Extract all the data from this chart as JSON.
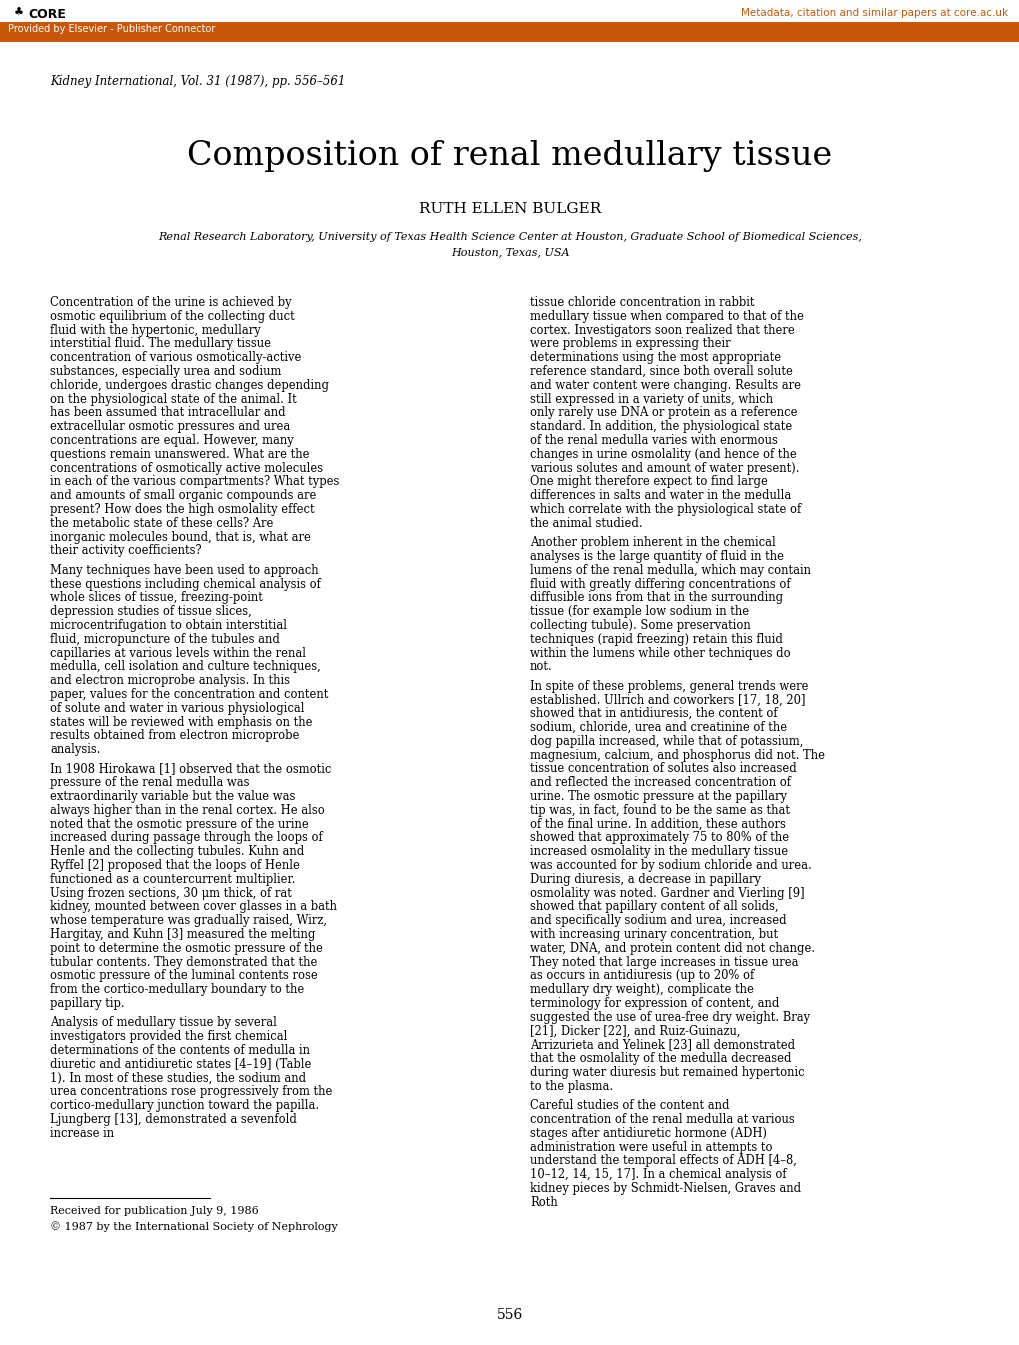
{
  "bg_color": "#ffffff",
  "header_bar_color": "#c8570a",
  "header_bar_text": "Provided by Elsevier - Publisher Connector",
  "header_bar_text_color": "#ffffff",
  "core_text": "CORE",
  "core_link_text": "Metadata, citation and similar papers at core.ac.uk",
  "core_link_color": "#c8570a",
  "journal_ref": "Kidney International, Vol. 31 (1987), pp. 556–561",
  "main_title": "Composition of renal medullary tissue",
  "author": "RUTH ELLEN BULGER",
  "affiliation_line1": "Renal Research Laboratory, University of Texas Health Science Center at Houston, Graduate School of Biomedical Sciences,",
  "affiliation_line2": "Houston, Texas, USA",
  "col1_paragraphs": [
    "   Concentration of the urine is achieved by osmotic equilibrium of the collecting duct fluid with the hypertonic, medullary interstitial fluid. The medullary tissue concentration of various osmotically-active substances, especially urea and sodium chloride, undergoes drastic changes depending on the physiological state of the animal. It has been assumed that intracellular and extracellular osmotic pressures and urea concentrations are equal. However, many questions remain unanswered. What are the concentrations of osmotically active molecules in each of the various compartments? What types and amounts of small organic compounds are present? How does the high osmolality effect the metabolic state of these cells? Are inorganic molecules bound, that is, what are their activity coefficients?",
    "   Many techniques have been used to approach these questions including chemical analysis of whole slices of tissue, freezing-point depression studies of tissue slices, microcentrifugation to obtain interstitial fluid, micropuncture of the tubules and capillaries at various levels within the renal medulla, cell isolation and culture techniques, and electron microprobe analysis. In this paper, values for the concentration and content of solute and water in various physiological states will be reviewed with emphasis on the results obtained from electron microprobe analysis.",
    "   In 1908 Hirokawa [1] observed that the osmotic pressure of the renal medulla was extraordinarily variable but the value was always higher than in the renal cortex. He also noted that the osmotic pressure of the urine increased during passage through the loops of Henle and the collecting tubules. Kuhn and Ryffel [2] proposed that the loops of Henle functioned as a countercurrent multiplier. Using frozen sections, 30 μm thick, of rat kidney, mounted between cover glasses in a bath whose temperature was gradually raised, Wirz, Hargitay, and Kuhn [3] measured the melting point to determine the osmotic pressure of the tubular contents. They demonstrated that the osmotic pressure of the luminal contents rose from the cortico-medullary boundary to the papillary tip.",
    "   Analysis of medullary tissue by several investigators provided the first chemical determinations of the contents of medulla in diuretic and antidiuretic states [4–19] (Table 1). In most of these studies, the sodium and urea concentrations rose progressively from the cortico-medullary junction toward the papilla. Ljungberg [13], demonstrated a sevenfold increase in"
  ],
  "col2_paragraphs": [
    "tissue chloride concentration in rabbit medullary tissue when compared to that of the cortex. Investigators soon realized that there were problems in expressing their determinations using the most appropriate reference standard, since both overall solute and water content were changing. Results are still expressed in a variety of units, which only rarely use DNA or protein as a reference standard. In addition, the physiological state of the renal medulla varies with enormous changes in urine osmolality (and hence of the various solutes and amount of water present). One might therefore expect to find large differences in salts and water in the medulla which correlate with the physiological state of the animal studied.",
    "   Another problem inherent in the chemical analyses is the large quantity of fluid in the lumens of the renal medulla, which may contain fluid with greatly differing concentrations of diffusible ions from that in the surrounding tissue (for example low sodium in the collecting tubule). Some preservation techniques (rapid freezing) retain this fluid within the lumens while other techniques do not.",
    "   In spite of these problems, general trends were established. Ullrich and coworkers [17, 18, 20] showed that in antidiuresis, the content of sodium, chloride, urea and creatinine of the dog papilla increased, while that of potassium, magnesium, calcium, and phosphorus did not. The tissue concentration of solutes also increased and reflected the increased concentration of urine. The osmotic pressure at the papillary tip was, in fact, found to be the same as that of the final urine. In addition, these authors showed that approximately 75 to 80% of the increased osmolality in the medullary tissue was accounted for by sodium chloride and urea. During diuresis, a decrease in papillary osmolality was noted. Gardner and Vierling [9] showed that papillary content of all solids, and specifically sodium and urea, increased with increasing urinary concentration, but water, DNA, and protein content did not change. They noted that large increases in tissue urea as occurs in antidiuresis (up to 20% of medullary dry weight), complicate the terminology for expression of content, and suggested the use of urea-free dry weight. Bray [21], Dicker [22], and Ruiz-Guinazu, Arrizurieta and Yelinek [23] all demonstrated that the osmolality of the medulla decreased during water diuresis but remained hypertonic to the plasma.",
    "   Careful studies of the content and concentration of the renal medulla at various stages after antidiuretic hormone (ADH) administration were useful in attempts to understand the temporal effects of ADH [4–8, 10–12, 14, 15, 17]. In a chemical analysis of kidney pieces by Schmidt-Nielsen, Graves and Roth"
  ],
  "footnote1": "Received for publication July 9, 1986",
  "footnote2": "© 1987 by the International Society of Nephrology",
  "page_number": "556"
}
